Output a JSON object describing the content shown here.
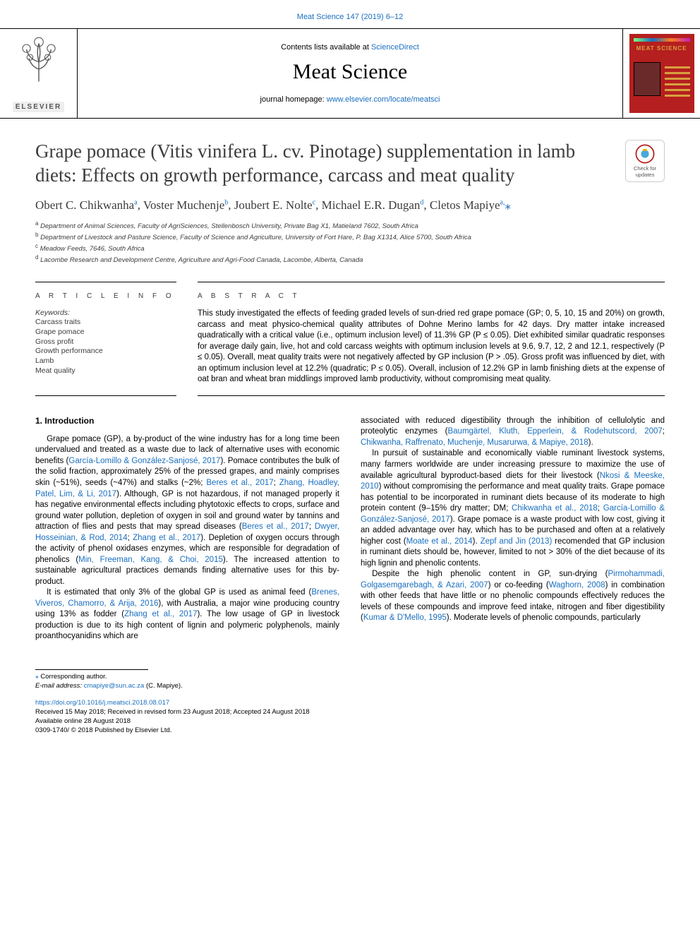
{
  "header": {
    "citation": "Meat Science 147 (2019) 6–12",
    "contents_prefix": "Contents lists available at ",
    "contents_link": "ScienceDirect",
    "journal_name": "Meat Science",
    "homepage_prefix": "journal homepage: ",
    "homepage_link": "www.elsevier.com/locate/meatsci",
    "publisher_word": "ELSEVIER",
    "cover_title": "MEAT SCIENCE",
    "check_updates_label": "Check for updates"
  },
  "colors": {
    "link": "#1a6fbf",
    "cover_bg": "#b51f1f",
    "cover_accent": "#d8a040",
    "text": "#000000",
    "muted": "#3c3c3c"
  },
  "article": {
    "title": "Grape pomace (Vitis vinifera L. cv. Pinotage) supplementation in lamb diets: Effects on growth performance, carcass and meat quality",
    "authors_html": "Obert C. Chikwanha<sup>a</sup>, Voster Muchenje<sup>b</sup>, Joubert E. Nolte<sup>c</sup>, Michael E.R. Dugan<sup>d</sup>, Cletos Mapiye<sup>a,</sup><span class='star'>⁎</span>",
    "affiliations": [
      {
        "key": "a",
        "text": "Department of Animal Sciences, Faculty of AgriSciences, Stellenbosch University, Private Bag X1, Matieland 7602, South Africa"
      },
      {
        "key": "b",
        "text": "Department of Livestock and Pasture Science, Faculty of Science and Agriculture, University of Fort Hare, P. Bag X1314, Alice 5700, South Africa"
      },
      {
        "key": "c",
        "text": "Meadow Feeds, 7646, South Africa"
      },
      {
        "key": "d",
        "text": "Lacombe Research and Development Centre, Agriculture and Agri-Food Canada, Lacombe, Alberta, Canada"
      }
    ]
  },
  "article_info": {
    "heading": "A R T I C L E  I N F O",
    "keywords_heading": "Keywords:",
    "keywords": [
      "Carcass traits",
      "Grape pomace",
      "Gross profit",
      "Growth performance",
      "Lamb",
      "Meat quality"
    ]
  },
  "abstract": {
    "heading": "A B S T R A C T",
    "text": "This study investigated the effects of feeding graded levels of sun-dried red grape pomace (GP; 0, 5, 10, 15 and 20%) on growth, carcass and meat physico-chemical quality attributes of Dohne Merino lambs for 42 days. Dry matter intake increased quadratically with a critical value (i.e., optimum inclusion level) of 11.3% GP (P ≤ 0.05). Diet exhibited similar quadratic responses for average daily gain, live, hot and cold carcass weights with optimum inclusion levels at 9.6, 9.7, 12, 2 and 12.1, respectively (P ≤ 0.05). Overall, meat quality traits were not negatively affected by GP inclusion (P > .05). Gross profit was influenced by diet, with an optimum inclusion level at 12.2% (quadratic; P ≤ 0.05). Overall, inclusion of 12.2% GP in lamb finishing diets at the expense of oat bran and wheat bran middlings improved lamb productivity, without compromising meat quality."
  },
  "body": {
    "section_heading": "1. Introduction",
    "left_paras": [
      "Grape pomace (GP), a by-product of the wine industry has for a long time been undervalued and treated as a waste due to lack of alternative uses with economic benefits (<a href='#'>García-Lomillo & González-Sanjosé, 2017</a>). Pomace contributes the bulk of the solid fraction, approximately 25% of the pressed grapes, and mainly comprises skin (~51%), seeds (~47%) and stalks (~2%; <a href='#'>Beres et al., 2017</a>; <a href='#'>Zhang, Hoadley, Patel, Lim, & Li, 2017</a>). Although, GP is not hazardous, if not managed properly it has negative environmental effects including phytotoxic effects to crops, surface and ground water pollution, depletion of oxygen in soil and ground water by tannins and attraction of flies and pests that may spread diseases (<a href='#'>Beres et al., 2017</a>; <a href='#'>Dwyer, Hosseinian, & Rod, 2014</a>; <a href='#'>Zhang et al., 2017</a>). Depletion of oxygen occurs through the activity of phenol oxidases enzymes, which are responsible for degradation of phenolics (<a href='#'>Min, Freeman, Kang, & Choi, 2015</a>). The increased attention to sustainable agricultural practices demands finding alternative uses for this by-product.",
      "It is estimated that only 3% of the global GP is used as animal feed (<a href='#'>Brenes, Viveros, Chamorro, & Arija, 2016</a>), with Australia, a major wine producing country using 13% as fodder (<a href='#'>Zhang et al., 2017</a>). The low usage of GP in livestock production is due to its high content of lignin and polymeric polyphenols, mainly proanthocyanidins which are"
    ],
    "right_paras": [
      "associated with reduced digestibility through the inhibition of cellulolytic and proteolytic enzymes (<a href='#'>Baumgärtel, Kluth, Epperlein, & Rodehutscord, 2007</a>; <a href='#'>Chikwanha, Raffrenato, Muchenje, Musarurwa, & Mapiye, 2018</a>).",
      "In pursuit of sustainable and economically viable ruminant livestock systems, many farmers worldwide are under increasing pressure to maximize the use of available agricultural byproduct-based diets for their livestock (<a href='#'>Nkosi & Meeske, 2010</a>) without compromising the performance and meat quality traits. Grape pomace has potential to be incorporated in ruminant diets because of its moderate to high protein content (9–15% dry matter; DM; <a href='#'>Chikwanha et al., 2018</a>; <a href='#'>García-Lomillo & González-Sanjosé, 2017</a>). Grape pomace is a waste product with low cost, giving it an added advantage over hay, which has to be purchased and often at a relatively higher cost (<a href='#'>Moate et al., 2014</a>). <a href='#'>Zepf and Jin (2013)</a> recomended that GP inclusion in ruminant diets should be, however, limited to not > 30% of the diet because of its high lignin and phenolic contents.",
      "Despite the high phenolic content in GP, sun-drying (<a href='#'>Pirmohammadi, Golgasemgarebagh, & Azari, 2007</a>) or co-feeding (<a href='#'>Waghorn, 2008</a>) in combination with other feeds that have little or no phenolic compounds effectively reduces the levels of these compounds and improve feed intake, nitrogen and fiber digestibility (<a href='#'>Kumar & D'Mello, 1995</a>). Moderate levels of phenolic compounds, particularly"
    ]
  },
  "footnote": {
    "corr_label": "Corresponding author.",
    "email_label": "E-mail address:",
    "email": "cmapiye@sun.ac.za",
    "email_suffix": "(C. Mapiye)."
  },
  "footer": {
    "doi": "https://doi.org/10.1016/j.meatsci.2018.08.017",
    "received": "Received 15 May 2018; Received in revised form 23 August 2018; Accepted 24 August 2018",
    "available": "Available online 28 August 2018",
    "issn_copyright": "0309-1740/ © 2018 Published by Elsevier Ltd."
  }
}
